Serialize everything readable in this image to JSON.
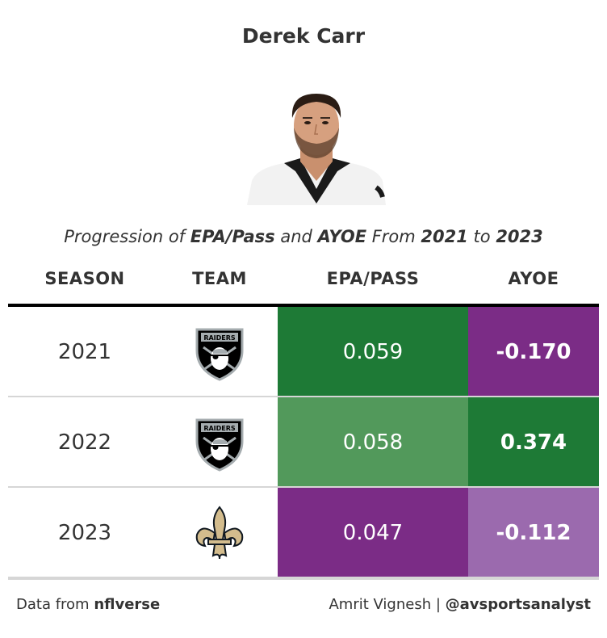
{
  "title": "Derek Carr",
  "subtitle": {
    "prefix": "Progression of ",
    "metric1": "EPA/Pass",
    "conj": " and ",
    "metric2": "AYOE",
    "from": " From ",
    "start_year": "2021",
    "to": " to ",
    "end_year": "2023"
  },
  "table": {
    "columns": {
      "season": "SEASON",
      "team": "TEAM",
      "epa": "EPA/PASS",
      "ayoe": "AYOE"
    },
    "rows": [
      {
        "season": "2021",
        "team_logo": "raiders-logo",
        "epa": "0.059",
        "ayoe": "-0.170",
        "epa_color": "#1e7a36",
        "ayoe_color": "#7b2c86"
      },
      {
        "season": "2022",
        "team_logo": "raiders-logo",
        "epa": "0.058",
        "ayoe": "0.374",
        "epa_color": "#52995b",
        "ayoe_color": "#1e7a36"
      },
      {
        "season": "2023",
        "team_logo": "saints-logo",
        "epa": "0.047",
        "ayoe": "-0.112",
        "epa_color": "#7b2c86",
        "ayoe_color": "#9b6aae"
      }
    ]
  },
  "footer": {
    "source_prefix": "Data from ",
    "source": "nflverse",
    "author": "Amrit Vignesh | ",
    "handle": "@avsportsanalyst"
  }
}
